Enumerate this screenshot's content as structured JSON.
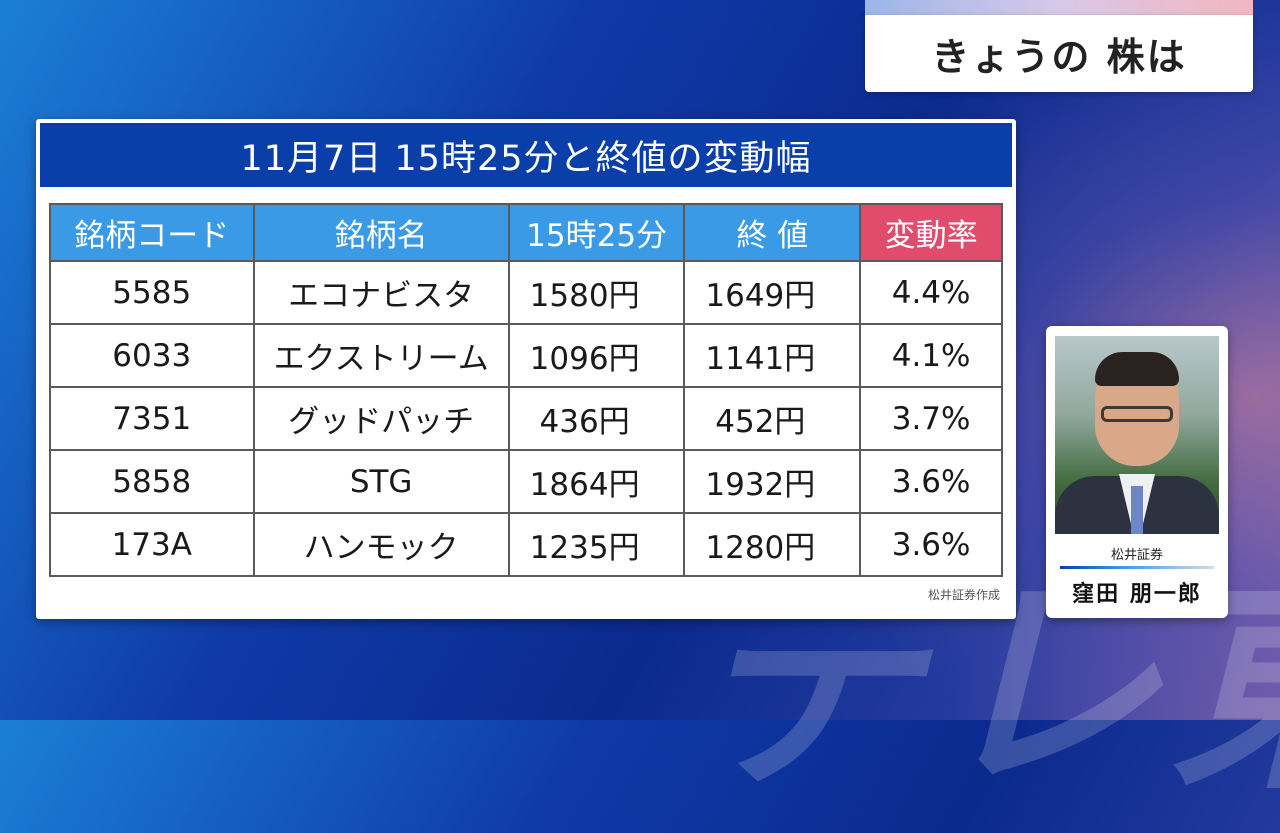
{
  "header": {
    "title": "きょうの 株は"
  },
  "panel": {
    "title": "11月7日 15時25分と終値の変動幅",
    "source": "松井証券作成"
  },
  "table": {
    "headers": [
      "銘柄コード",
      "銘柄名",
      "15時25分",
      "終 値",
      "変動率"
    ],
    "rows": [
      {
        "code": "5585",
        "name": "エコナビスタ",
        "price_1525": "1580円",
        "close": "1649円",
        "rate": "4.4%"
      },
      {
        "code": "6033",
        "name": "エクストリーム",
        "price_1525": "1096円",
        "close": "1141円",
        "rate": "4.1%"
      },
      {
        "code": "7351",
        "name": "グッドパッチ",
        "price_1525": "436円",
        "close": "452円",
        "rate": "3.7%"
      },
      {
        "code": "5858",
        "name": "STG",
        "price_1525": "1864円",
        "close": "1932円",
        "rate": "3.6%"
      },
      {
        "code": "173A",
        "name": "ハンモック",
        "price_1525": "1235円",
        "close": "1280円",
        "rate": "3.6%"
      }
    ]
  },
  "analyst": {
    "company": "松井証券",
    "name": "窪田 朋一郎"
  },
  "watermark": "テレ東",
  "colors": {
    "title_bar": "#0a3faa",
    "header_cell": "#3a9ae6",
    "rate_header": "#e24c6c",
    "rate_text": "#d8335a"
  }
}
